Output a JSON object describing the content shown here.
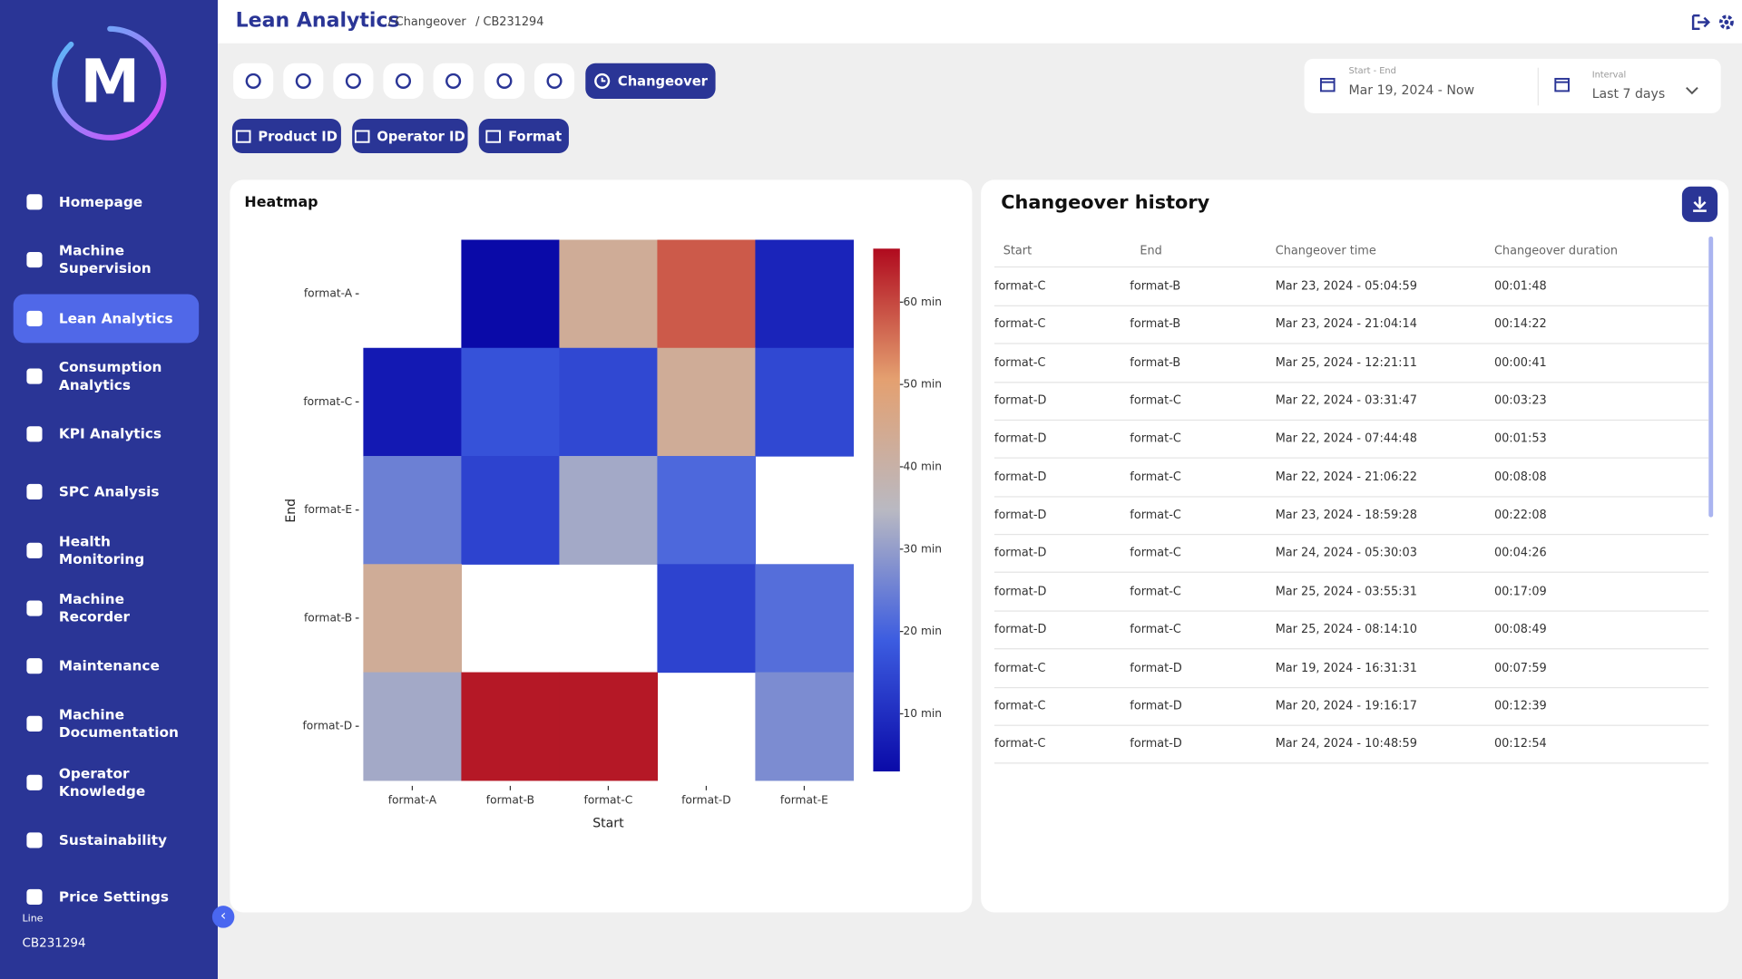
{
  "logo": "M",
  "header": {
    "title": "Lean Analytics",
    "breadcrumbs": [
      "/ Changeover",
      "/ CB231294"
    ]
  },
  "sidebar": {
    "items": [
      "Homepage",
      "Machine Supervision",
      "Lean Analytics",
      "Consumption Analytics",
      "KPI Analytics",
      "SPC Analysis",
      "Health Monitoring",
      "Machine Recorder",
      "Maintenance",
      "Machine Documentation",
      "Operator Knowledge",
      "Sustainability",
      "Price Settings"
    ],
    "line_label": "Line",
    "line_value": "CB231294"
  },
  "toolbar": {
    "active_tab": "Changeover",
    "filters": [
      "Product ID",
      "Operator ID",
      "Format"
    ]
  },
  "date_range": {
    "label": "Start - End",
    "value": "Mar 19, 2024 - Now"
  },
  "interval": {
    "label": "Interval",
    "value": "Last 7 days"
  },
  "chart_data": {
    "type": "heatmap",
    "title": "Heatmap",
    "x_label": "Start",
    "y_label": "End",
    "x": [
      "format-A",
      "format-B",
      "format-C",
      "format-D",
      "format-E"
    ],
    "y": [
      "format-A",
      "format-C",
      "format-E",
      "format-B",
      "format-D"
    ],
    "values": [
      [
        null,
        3,
        43,
        58,
        8
      ],
      [
        6,
        17,
        15,
        43,
        15
      ],
      [
        25,
        14,
        32,
        21,
        null
      ],
      [
        43,
        null,
        null,
        14,
        22
      ],
      [
        32,
        65,
        65,
        null,
        27
      ]
    ],
    "zlim": [
      3,
      66.5
    ],
    "zticks": [
      {
        "value": 10,
        "label": "10 min"
      },
      {
        "value": 20,
        "label": "20 min"
      },
      {
        "value": 30,
        "label": "30 min"
      },
      {
        "value": 40,
        "label": "40 min"
      },
      {
        "value": 50,
        "label": "50 min"
      },
      {
        "value": 60,
        "label": "60 min"
      }
    ],
    "colorscale": [
      "#0a0aa8",
      "#3c5ce0",
      "#b9b9c2",
      "#e4a070",
      "#b00a1e"
    ]
  },
  "history": {
    "title": "Changeover history",
    "columns": [
      "Start",
      "End",
      "Changeover time",
      "Changeover duration"
    ],
    "rows": [
      [
        "format-C",
        "format-B",
        "Mar 23, 2024 - 05:04:59",
        "00:01:48"
      ],
      [
        "format-C",
        "format-B",
        "Mar 23, 2024 - 21:04:14",
        "00:14:22"
      ],
      [
        "format-C",
        "format-B",
        "Mar 25, 2024 - 12:21:11",
        "00:00:41"
      ],
      [
        "format-D",
        "format-C",
        "Mar 22, 2024 - 03:31:47",
        "00:03:23"
      ],
      [
        "format-D",
        "format-C",
        "Mar 22, 2024 - 07:44:48",
        "00:01:53"
      ],
      [
        "format-D",
        "format-C",
        "Mar 22, 2024 - 21:06:22",
        "00:08:08"
      ],
      [
        "format-D",
        "format-C",
        "Mar 23, 2024 - 18:59:28",
        "00:22:08"
      ],
      [
        "format-D",
        "format-C",
        "Mar 24, 2024 - 05:30:03",
        "00:04:26"
      ],
      [
        "format-D",
        "format-C",
        "Mar 25, 2024 - 03:55:31",
        "00:17:09"
      ],
      [
        "format-D",
        "format-C",
        "Mar 25, 2024 - 08:14:10",
        "00:08:49"
      ],
      [
        "format-C",
        "format-D",
        "Mar 19, 2024 - 16:31:31",
        "00:07:59"
      ],
      [
        "format-C",
        "format-D",
        "Mar 20, 2024 - 19:16:17",
        "00:12:39"
      ],
      [
        "format-C",
        "format-D",
        "Mar 24, 2024 - 10:48:59",
        "00:12:54"
      ]
    ]
  }
}
